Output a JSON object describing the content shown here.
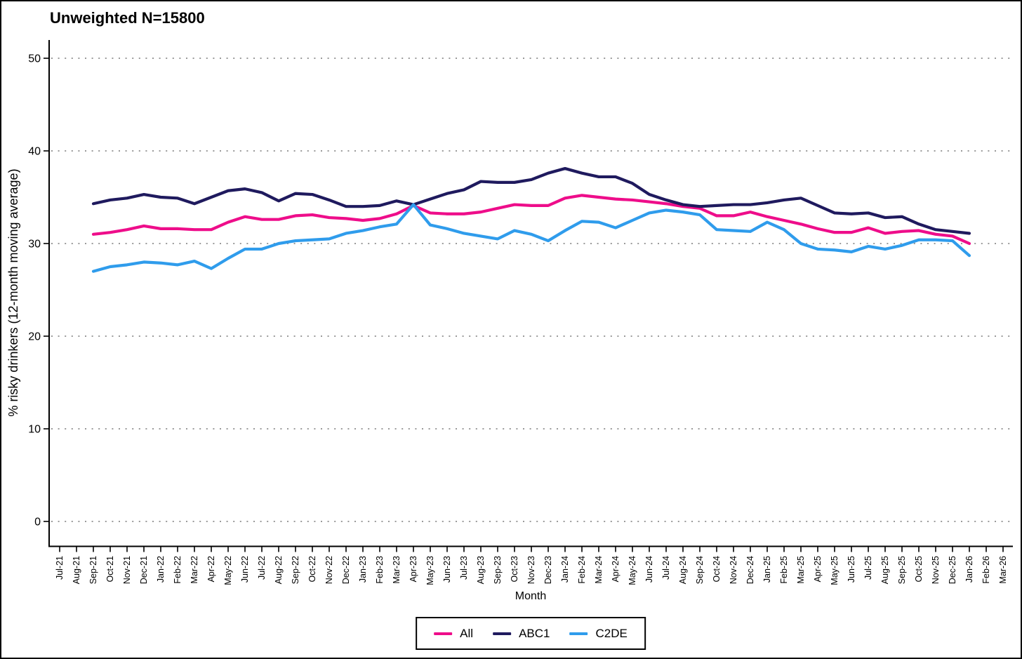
{
  "title": "Unweighted N=15800",
  "y_axis": {
    "label": "% risky drinkers (12-month moving average)",
    "ticks": [
      0,
      10,
      20,
      30,
      40,
      50
    ]
  },
  "x_axis": {
    "label": "Month"
  },
  "legend": {
    "items": [
      {
        "label": "All",
        "color": "#EE0D8A"
      },
      {
        "label": "ABC1",
        "color": "#1F1A5E"
      },
      {
        "label": "C2DE",
        "color": "#2F9CEC"
      }
    ]
  },
  "chart_data": {
    "type": "line",
    "title": "Unweighted N=15800",
    "xlabel": "Month",
    "ylabel": "% risky drinkers (12-month moving average)",
    "ylim": [
      0,
      50
    ],
    "yticks": [
      0,
      10,
      20,
      30,
      40,
      50
    ],
    "grid": "horizontal-dotted",
    "legend_position": "bottom-center",
    "x_tick_label_rotation": 90,
    "x_categories": [
      "Jul-21",
      "Aug-21",
      "Sep-21",
      "Oct-21",
      "Nov-21",
      "Dec-21",
      "Jan-22",
      "Feb-22",
      "Mar-22",
      "Apr-22",
      "May-22",
      "Jun-22",
      "Jul-22",
      "Aug-22",
      "Sep-22",
      "Oct-22",
      "Nov-22",
      "Dec-22",
      "Jan-23",
      "Feb-23",
      "Mar-23",
      "Apr-23",
      "May-23",
      "Jun-23",
      "Jul-23",
      "Aug-23",
      "Sep-23",
      "Oct-23",
      "Nov-23",
      "Dec-23",
      "Jan-24",
      "Feb-24",
      "Mar-24",
      "Apr-24",
      "May-24",
      "Jun-24",
      "Jul-24",
      "Aug-24",
      "Sep-24",
      "Oct-24",
      "Nov-24",
      "Dec-24",
      "Jan-25",
      "Feb-25",
      "Mar-25",
      "Apr-25",
      "May-25",
      "Jun-25",
      "Jul-25",
      "Aug-25",
      "Sep-25",
      "Oct-25",
      "Nov-25",
      "Dec-25",
      "Jan-26",
      "Feb-26",
      "Mar-26"
    ],
    "series_start_index": 2,
    "series_start_month": "Sep-21",
    "series_end_month": "Jan-26",
    "series": [
      {
        "name": "All",
        "color": "#EE0D8A",
        "values": [
          31.0,
          31.2,
          31.5,
          31.9,
          31.6,
          31.6,
          31.5,
          31.5,
          32.3,
          32.9,
          32.6,
          32.6,
          33.0,
          33.1,
          32.8,
          32.7,
          32.5,
          32.7,
          33.2,
          34.1,
          33.3,
          33.2,
          33.2,
          33.4,
          33.8,
          34.2,
          34.1,
          34.1,
          34.9,
          35.2,
          35.0,
          34.8,
          34.7,
          34.5,
          34.3,
          34.0,
          33.8,
          33.0,
          33.0,
          33.4,
          32.9,
          32.5,
          32.1,
          31.6,
          31.2,
          31.2,
          31.7,
          31.1,
          31.3,
          31.4,
          31.0,
          30.8,
          30.0
        ]
      },
      {
        "name": "ABC1",
        "color": "#1F1A5E",
        "values": [
          34.3,
          34.7,
          34.9,
          35.3,
          35.0,
          34.9,
          34.3,
          35.0,
          35.7,
          35.9,
          35.5,
          34.6,
          35.4,
          35.3,
          34.7,
          34.0,
          34.0,
          34.1,
          34.6,
          34.2,
          34.8,
          35.4,
          35.8,
          36.7,
          36.6,
          36.6,
          36.9,
          37.6,
          38.1,
          37.6,
          37.2,
          37.2,
          36.5,
          35.3,
          34.7,
          34.2,
          34.0,
          34.1,
          34.2,
          34.2,
          34.4,
          34.7,
          34.9,
          34.1,
          33.3,
          33.2,
          33.3,
          32.8,
          32.9,
          32.1,
          31.5,
          31.3,
          31.1
        ]
      },
      {
        "name": "C2DE",
        "color": "#2F9CEC",
        "values": [
          27.0,
          27.5,
          27.7,
          28.0,
          27.9,
          27.7,
          28.1,
          27.3,
          28.4,
          29.4,
          29.4,
          30.0,
          30.3,
          30.4,
          30.5,
          31.1,
          31.4,
          31.8,
          32.1,
          34.2,
          32.0,
          31.6,
          31.1,
          30.8,
          30.5,
          31.4,
          31.0,
          30.3,
          31.4,
          32.4,
          32.3,
          31.7,
          32.5,
          33.3,
          33.6,
          33.4,
          33.1,
          31.5,
          31.4,
          31.3,
          32.3,
          31.5,
          30.0,
          29.4,
          29.3,
          29.1,
          29.7,
          29.4,
          29.8,
          30.4,
          30.4,
          30.3,
          28.7
        ]
      }
    ]
  }
}
